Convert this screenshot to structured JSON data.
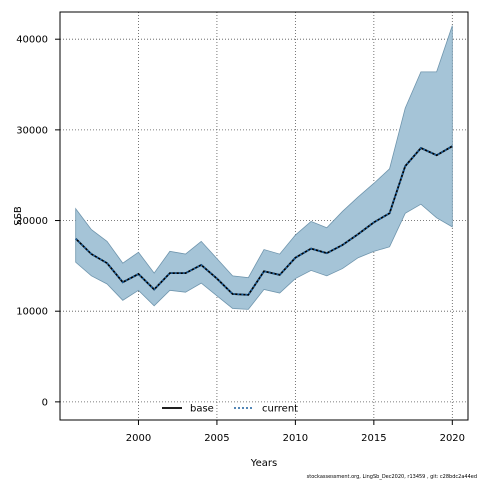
{
  "chart_data": {
    "type": "area",
    "xlabel": "Years",
    "ylabel": "SSB",
    "xlim": [
      1995,
      2021
    ],
    "ylim": [
      -2000,
      43000
    ],
    "xticks": [
      2000,
      2005,
      2010,
      2015,
      2020
    ],
    "yticks": [
      0,
      10000,
      20000,
      30000,
      40000
    ],
    "grid": true,
    "legend_position": "bottom-left",
    "x": [
      1996,
      1997,
      1998,
      1999,
      2000,
      2001,
      2002,
      2003,
      2004,
      2005,
      2006,
      2007,
      2008,
      2009,
      2010,
      2011,
      2012,
      2013,
      2014,
      2015,
      2016,
      2017,
      2018,
      2019,
      2020
    ],
    "series": [
      {
        "name": "base",
        "style": "solid",
        "color": "#000000",
        "values": [
          18000,
          16300,
          15300,
          13200,
          14100,
          12400,
          14200,
          14200,
          15100,
          13600,
          11900,
          11800,
          14400,
          14000,
          15900,
          16900,
          16400,
          17300,
          18500,
          19800,
          20800,
          26000,
          28000,
          27200,
          28200
        ]
      },
      {
        "name": "current",
        "style": "dotted",
        "color": "#1a5f9e",
        "values": [
          18000,
          16300,
          15300,
          13200,
          14100,
          12400,
          14200,
          14200,
          15100,
          13600,
          11900,
          11800,
          14400,
          14000,
          15900,
          16900,
          16400,
          17300,
          18500,
          19800,
          20800,
          26000,
          28000,
          27200,
          28200
        ]
      }
    ],
    "confidence_band": {
      "color": "#a5c4d7",
      "edge_color": "#6f95ad",
      "upper": [
        21300,
        19000,
        17700,
        15300,
        16500,
        14200,
        16600,
        16300,
        17700,
        15800,
        13900,
        13700,
        16800,
        16300,
        18400,
        19900,
        19200,
        21000,
        22600,
        24100,
        25700,
        32400,
        36400,
        36400,
        41500
      ],
      "lower": [
        15400,
        13900,
        13000,
        11200,
        12300,
        10600,
        12300,
        12100,
        13100,
        11700,
        10300,
        10200,
        12400,
        12000,
        13600,
        14500,
        13900,
        14700,
        15900,
        16600,
        17100,
        20800,
        21800,
        20300,
        19300
      ]
    }
  },
  "footer": {
    "text": "stockassessment.org, LingSb_Dec2020, r13459 , git: c28bdc2a44ed"
  }
}
